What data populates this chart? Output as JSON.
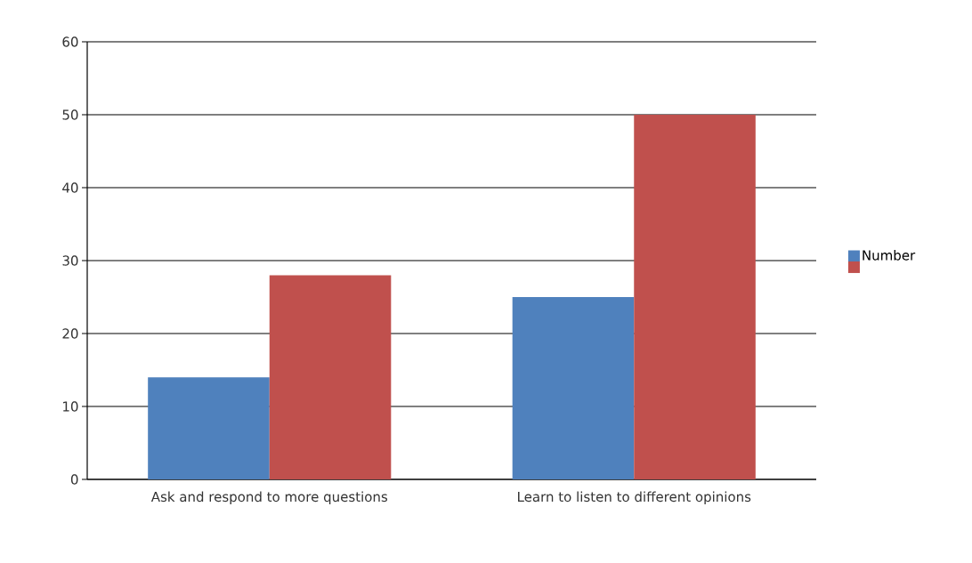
{
  "chart_data": {
    "type": "bar",
    "categories": [
      "Ask and respond to more questions",
      "Learn to listen to different opinions"
    ],
    "series": [
      {
        "name": "Number",
        "color": "#4f81bd",
        "values": [
          14,
          25
        ]
      },
      {
        "color": "#c0504d",
        "values": [
          28,
          50
        ]
      }
    ],
    "ylim": [
      0,
      60
    ],
    "yticks": [
      0,
      10,
      20,
      30,
      40,
      50,
      60
    ],
    "grid": "y",
    "legend": "right"
  }
}
